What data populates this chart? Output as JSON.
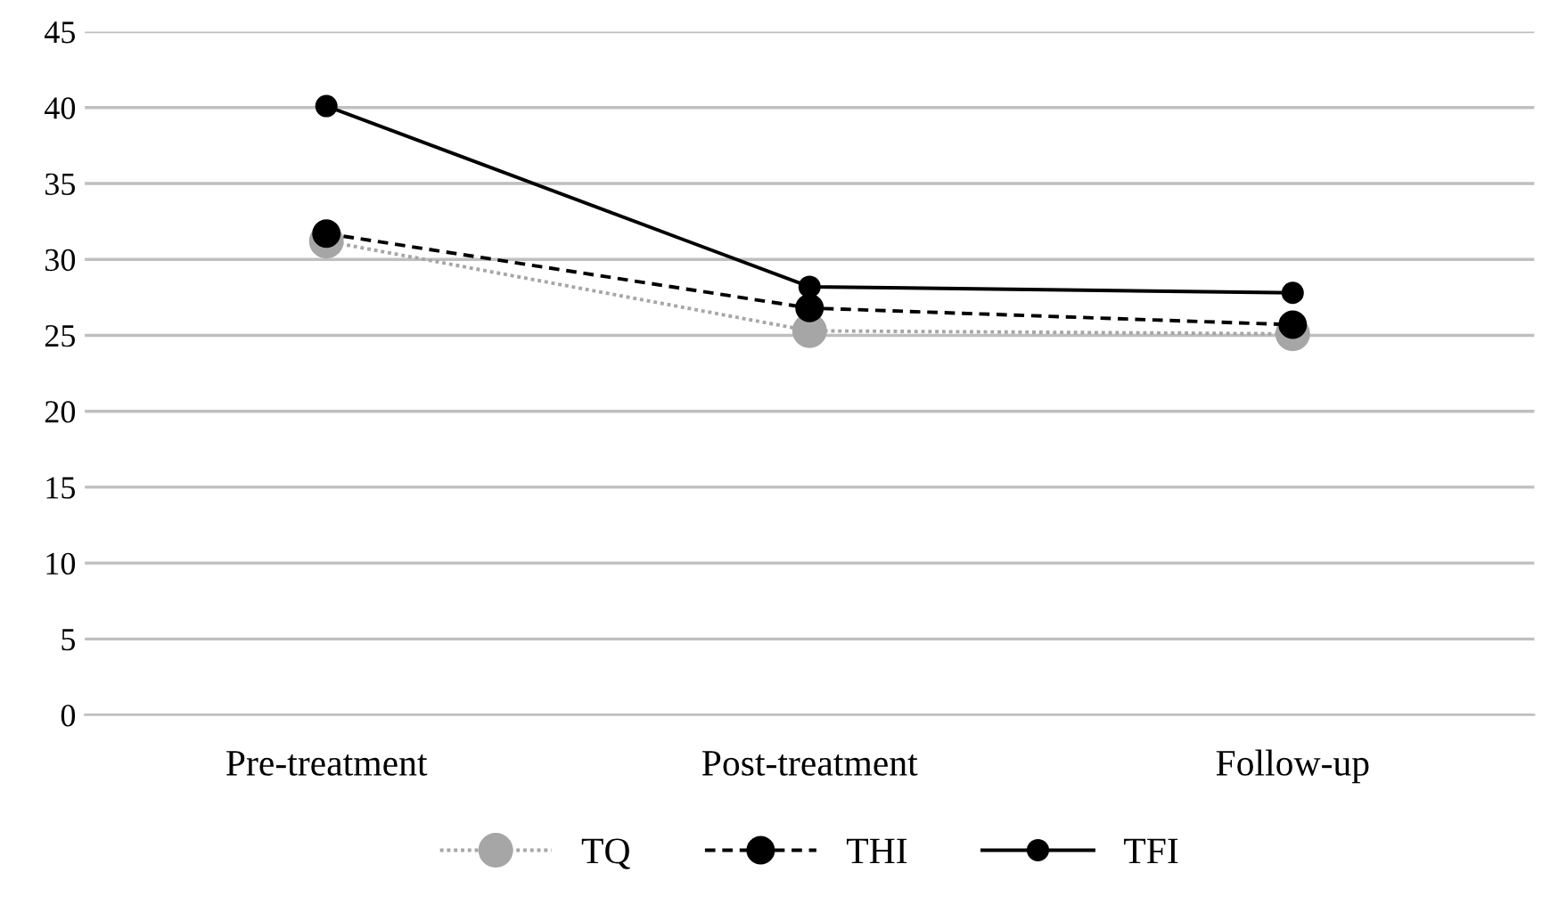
{
  "chart_data": {
    "type": "line",
    "categories": [
      "Pre-treatment",
      "Post-treatment",
      "Follow-up"
    ],
    "series": [
      {
        "name": "TQ",
        "color": "#a6a6a6",
        "line_style": "dotted",
        "values": [
          31.2,
          25.3,
          25.1
        ]
      },
      {
        "name": "THI",
        "color": "#000000",
        "line_style": "dashed",
        "values": [
          31.7,
          26.8,
          25.7
        ]
      },
      {
        "name": "TFI",
        "color": "#000000",
        "line_style": "solid",
        "values": [
          40.1,
          28.2,
          27.8
        ]
      }
    ],
    "ylim": [
      0,
      45
    ],
    "yticks": [
      0,
      5,
      10,
      15,
      20,
      25,
      30,
      35,
      40,
      45
    ],
    "grid": "y",
    "legend": "bottom",
    "marker": "circle"
  }
}
